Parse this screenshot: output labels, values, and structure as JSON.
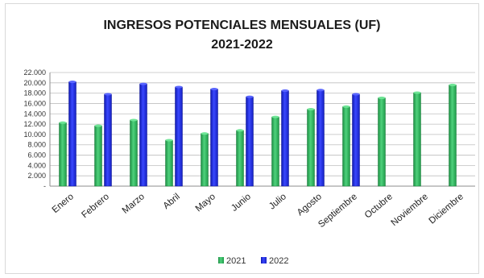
{
  "chart_data": {
    "type": "bar",
    "title": "INGRESOS POTENCIALES  MENSUALES (UF)",
    "subtitle": "2021-2022",
    "xlabel": "",
    "ylabel": "",
    "ylim": [
      0,
      22000
    ],
    "yticks": [
      "22.000",
      "20.000",
      "18.000",
      "16.000",
      "14.000",
      "12.000",
      "10.000",
      "8.000",
      "6.000",
      "4.000",
      "2.000",
      "-"
    ],
    "grid": true,
    "legend_position": "bottom",
    "categories": [
      "Enero",
      "Febrero",
      "Marzo",
      "Abril",
      "Mayo",
      "Junio",
      "Julio",
      "Agosto",
      "Septiembre",
      "Octubre",
      "Noviembre",
      "Diciembre"
    ],
    "series": [
      {
        "name": "2021",
        "color": "#2db45a",
        "values": [
          12300,
          11700,
          12800,
          8900,
          10200,
          10800,
          13400,
          14900,
          15400,
          17100,
          18100,
          19600
        ]
      },
      {
        "name": "2022",
        "color": "#1f2be0",
        "values": [
          20200,
          17800,
          19800,
          19200,
          18800,
          17300,
          18500,
          18600,
          17800,
          null,
          null,
          null
        ]
      }
    ]
  }
}
